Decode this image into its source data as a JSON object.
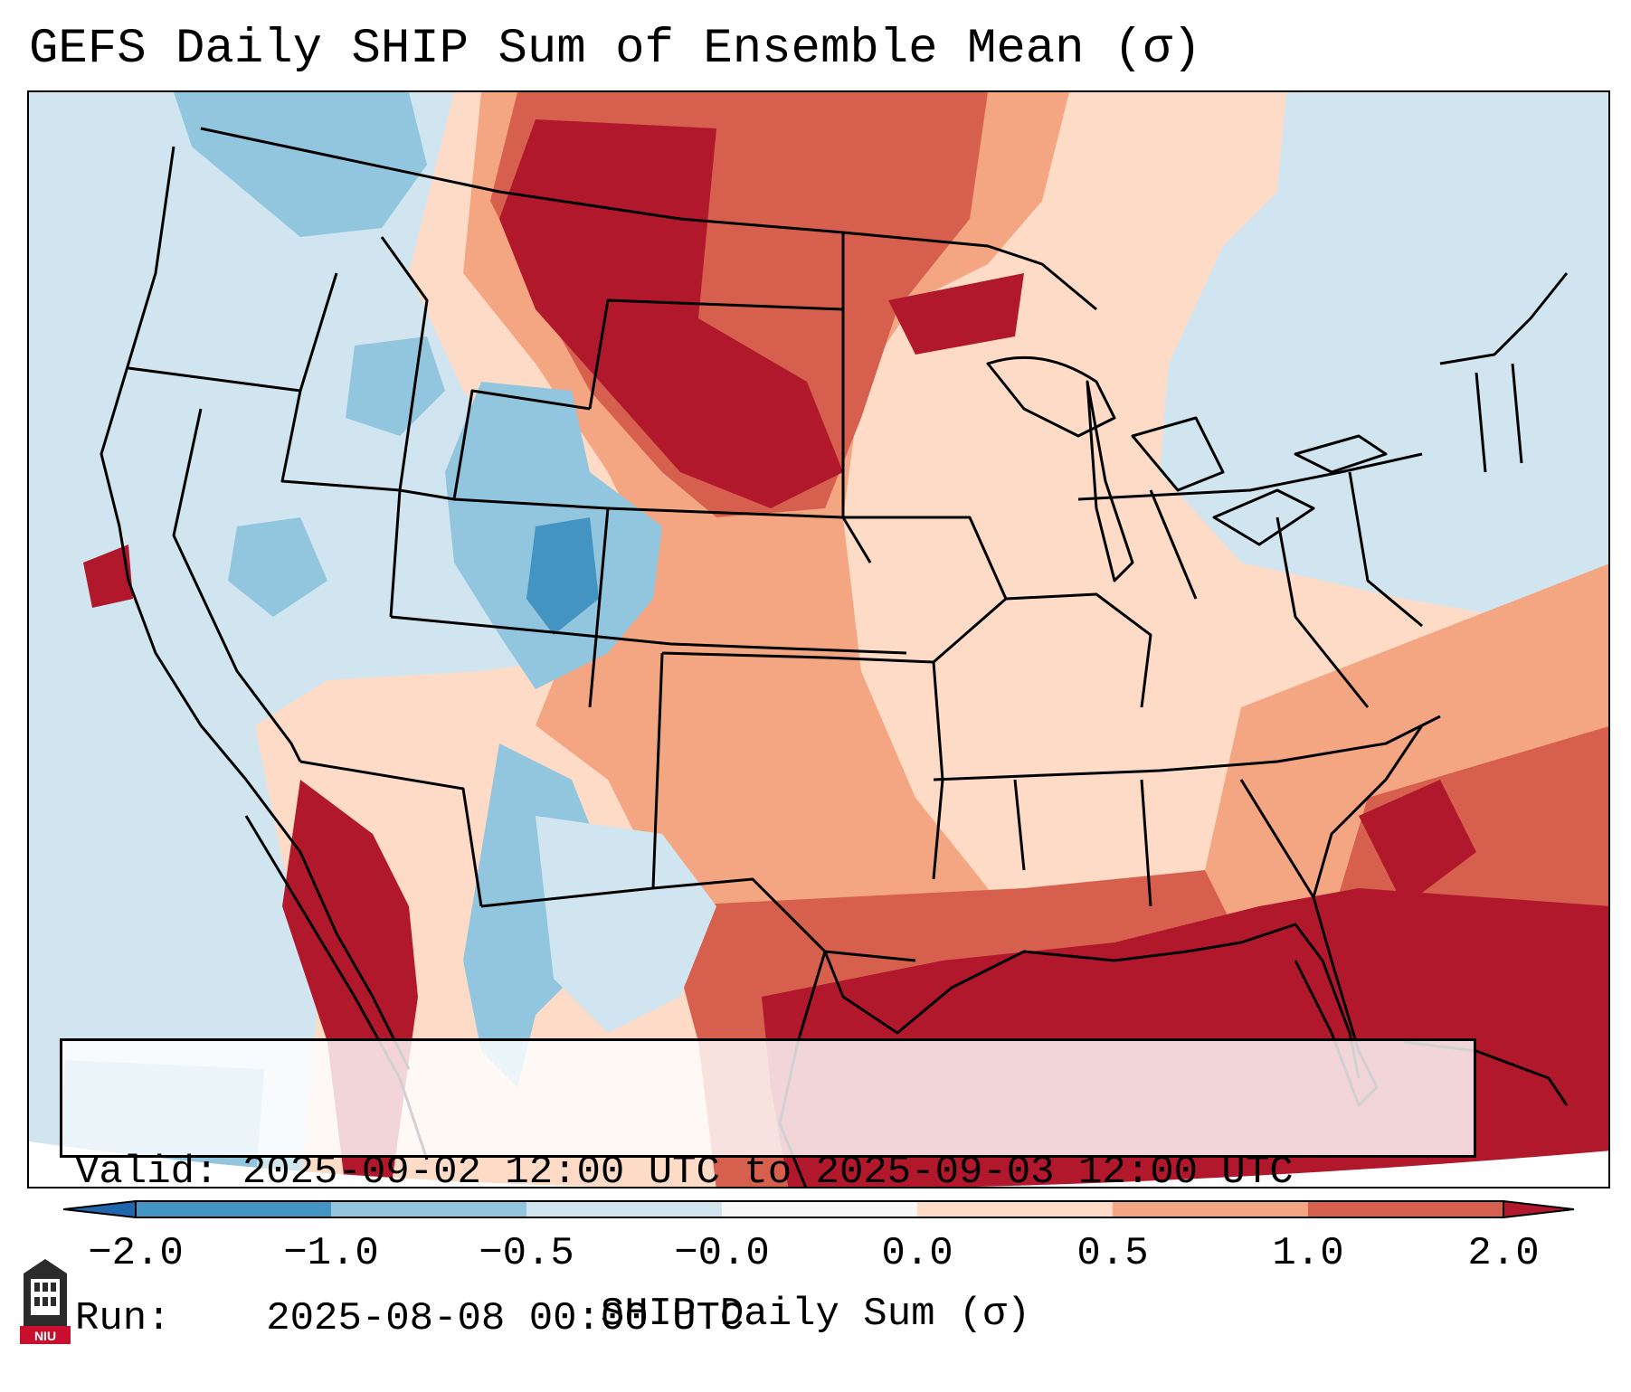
{
  "title": "GEFS Daily SHIP Sum of Ensemble Mean (σ)",
  "info": {
    "valid_label": "Valid:",
    "valid_value": "2025-09-02 12:00 UTC to 2025-09-03 12:00 UTC",
    "run_label": "Run:",
    "run_value": "2025-08-08 00:00 UTC"
  },
  "colorbar": {
    "label": "SHIP Daily Sum (σ)",
    "ticks": [
      "−2.0",
      "−1.0",
      "−0.5",
      "−0.0",
      "0.0",
      "0.5",
      "1.0",
      "2.0"
    ],
    "bins": [
      {
        "range": "< -2.0",
        "color": "#2166ac"
      },
      {
        "range": "-2.0 to -1.0",
        "color": "#4393c3"
      },
      {
        "range": "-1.0 to -0.5",
        "color": "#92c5de"
      },
      {
        "range": "-0.5 to -0.0",
        "color": "#d1e5f0"
      },
      {
        "range": "-0.0 to 0.0",
        "color": "#f7f7f7"
      },
      {
        "range": "0.0 to 0.5",
        "color": "#fddbc7"
      },
      {
        "range": "0.5 to 1.0",
        "color": "#f4a582"
      },
      {
        "range": "1.0 to 2.0",
        "color": "#d6604d"
      },
      {
        "range": "> 2.0",
        "color": "#b2182b"
      }
    ]
  },
  "logo": {
    "text": "NIU"
  }
}
